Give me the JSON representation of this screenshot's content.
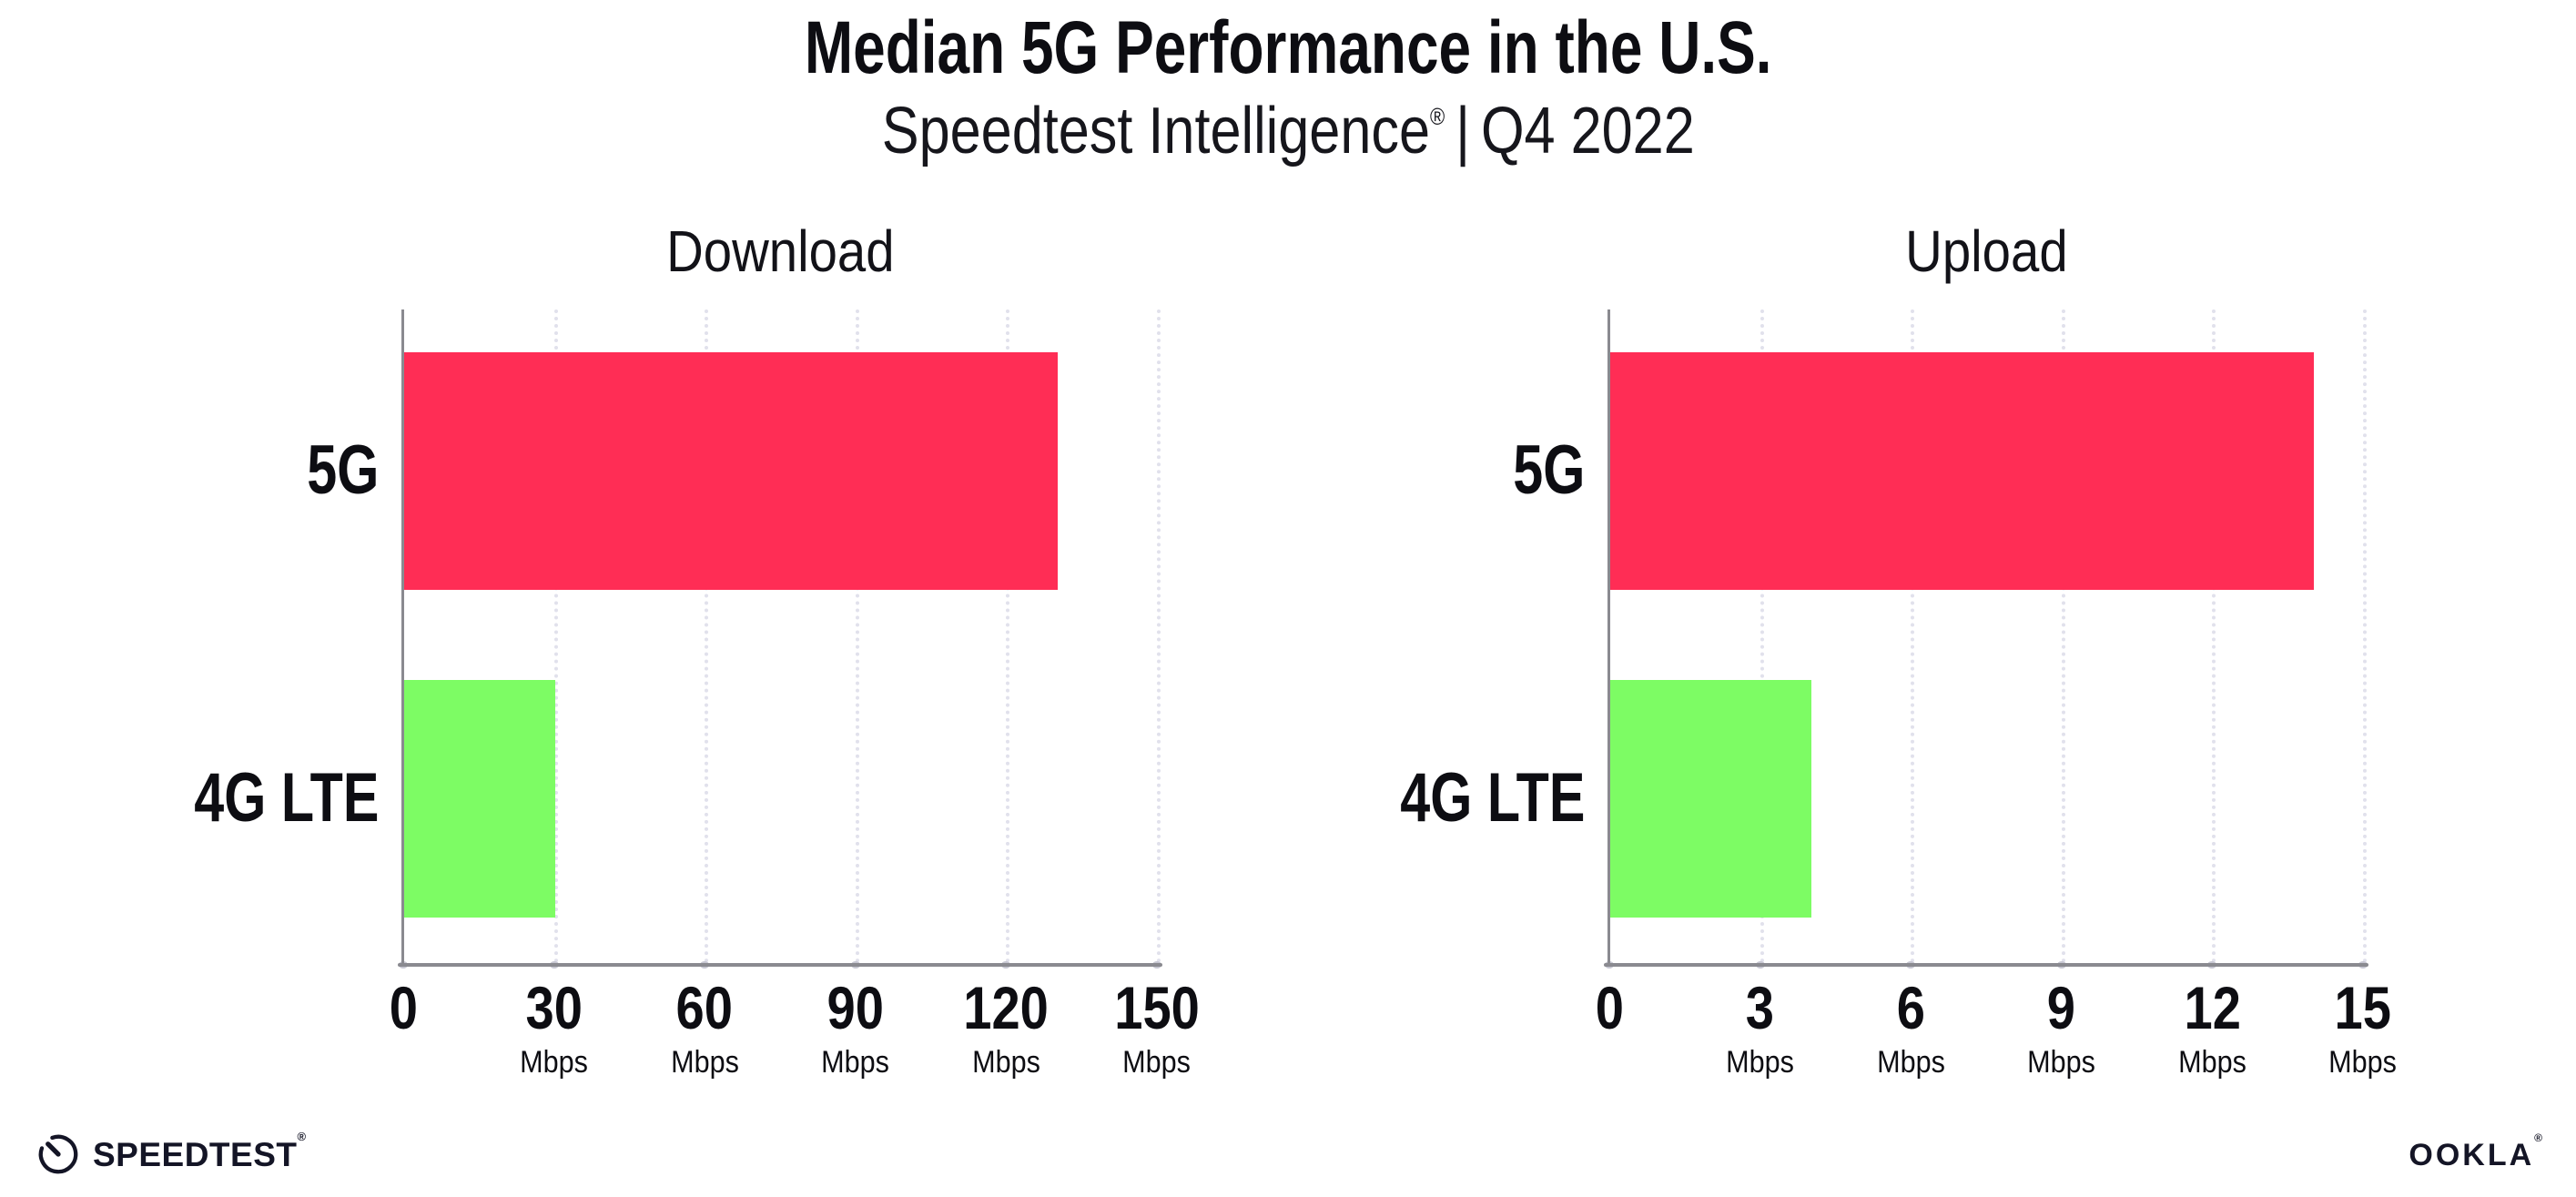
{
  "header": {
    "title": "Median 5G Performance in the U.S.",
    "subtitle_brand": "Speedtest Intelligence",
    "subtitle_reg": "®",
    "subtitle_separator": "|",
    "subtitle_period": "Q4 2022"
  },
  "chart_data": [
    {
      "type": "bar",
      "orientation": "horizontal",
      "title": "Download",
      "categories": [
        "5G",
        "4G LTE"
      ],
      "values": [
        130,
        30
      ],
      "unit": "Mbps",
      "xlim": [
        0,
        150
      ],
      "xticks": [
        0,
        30,
        60,
        90,
        120,
        150
      ],
      "bar_colors": [
        "#FF2D55",
        "#7DFC64"
      ],
      "grid": "dotted-vertical",
      "legend": "none"
    },
    {
      "type": "bar",
      "orientation": "horizontal",
      "title": "Upload",
      "categories": [
        "5G",
        "4G LTE"
      ],
      "values": [
        14,
        4
      ],
      "unit": "Mbps",
      "xlim": [
        0,
        15
      ],
      "xticks": [
        0,
        3,
        6,
        9,
        12,
        15
      ],
      "bar_colors": [
        "#FF2D55",
        "#7DFC64"
      ],
      "grid": "dotted-vertical",
      "legend": "none"
    }
  ],
  "colors": {
    "bar_5g": "#FF2D55",
    "bar_4g_lte": "#7DFC64",
    "axis_line": "#8A8A90",
    "gridline": "#E1E1EC",
    "text": "#0D0D12",
    "logo": "#141526"
  },
  "footer": {
    "speedtest_label": "SPEEDTEST",
    "speedtest_reg": "®",
    "ookla_label": "OOKLA",
    "ookla_reg": "®"
  }
}
